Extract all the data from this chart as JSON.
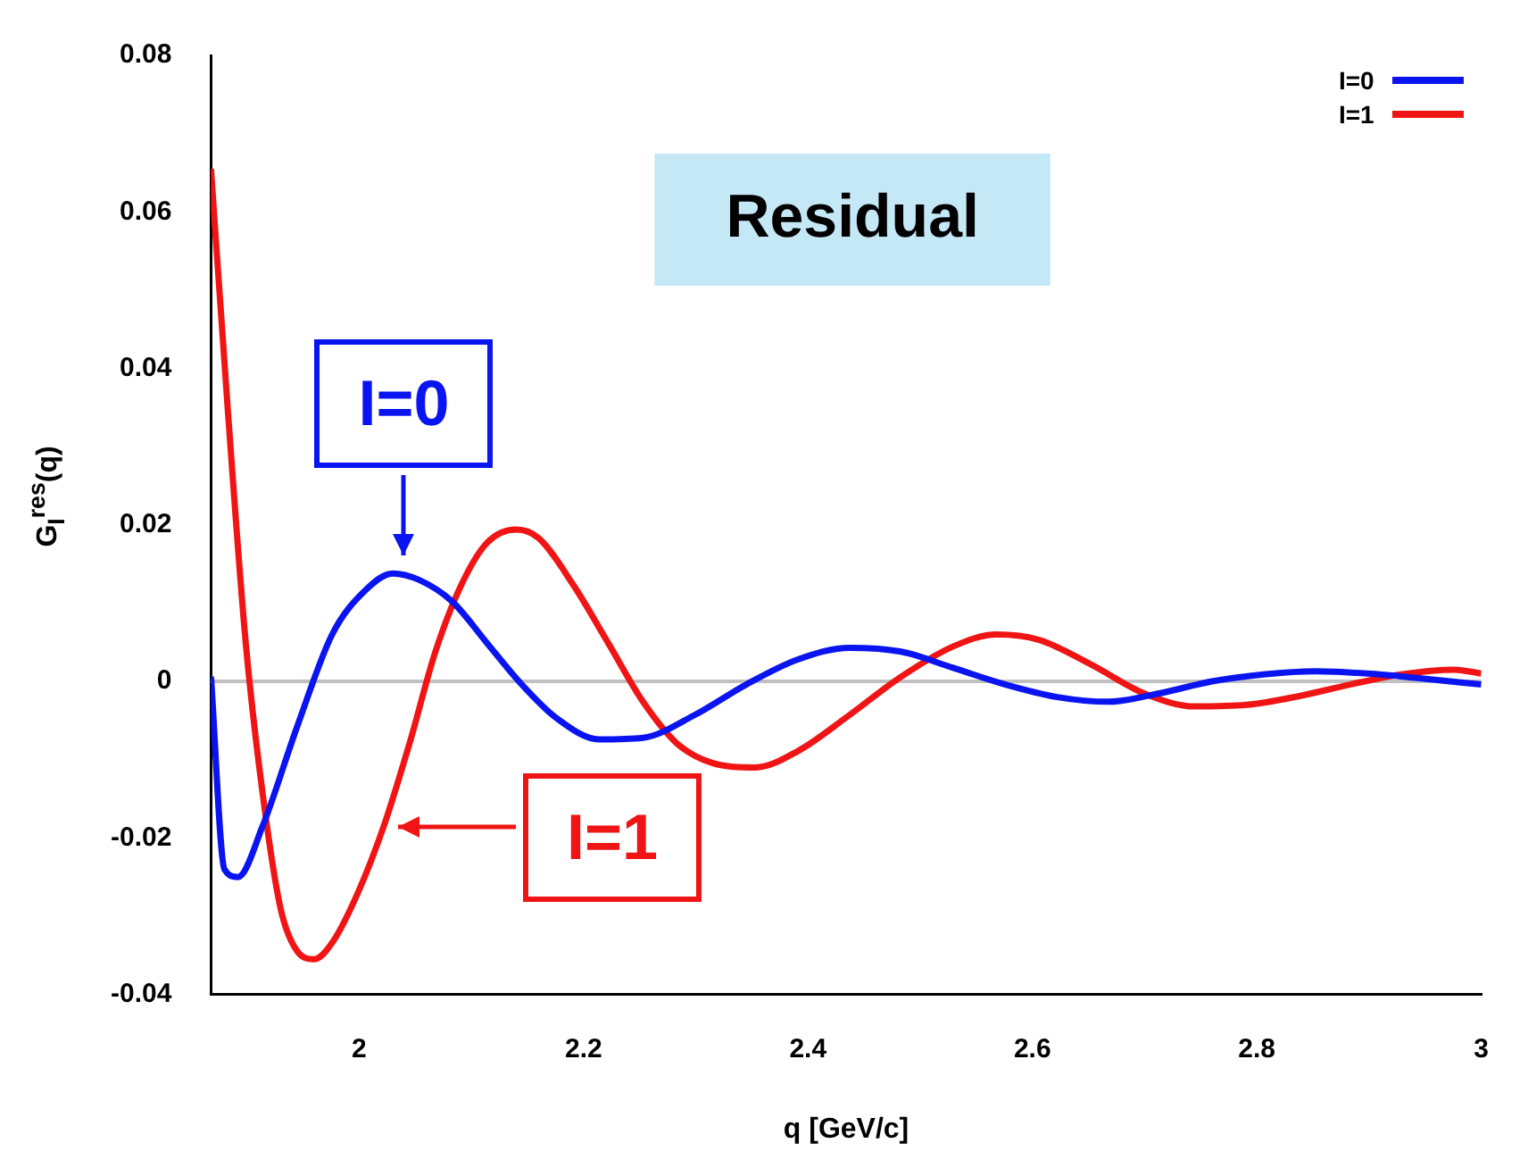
{
  "chart_data": {
    "type": "line",
    "xlabel": "q [GeV/c]",
    "ylabel": "G$_{I}$$^{res}$(q)",
    "xlim": [
      1.868,
      3
    ],
    "xticks": [
      2,
      2.2,
      2.4,
      2.6,
      2.8,
      3
    ],
    "ylim": [
      -0.04,
      0.08
    ],
    "yticks": [
      -0.04,
      -0.02,
      0,
      0.02,
      0.04,
      0.06,
      0.08
    ],
    "legend": "top right",
    "grid": false,
    "marker": "none",
    "line_style": "solid",
    "ref_lines": [
      {
        "axis": "y",
        "value": 0,
        "color": "#c0c0c0"
      }
    ],
    "annotations": [
      "Residual",
      {
        "text": "I=0",
        "x": 2.04,
        "y": 0.0138
      },
      {
        "text": "I=1",
        "x": 2.022,
        "y": -0.0185
      }
    ],
    "series": [
      {
        "name": "I=0",
        "color": "#0a14f0",
        "x": [
          1.868,
          1.88,
          1.892,
          1.914,
          1.945,
          1.976,
          2.006,
          2.03,
          2.053,
          2.083,
          2.114,
          2.145,
          2.176,
          2.214,
          2.253,
          2.299,
          2.345,
          2.391,
          2.437,
          2.483,
          2.53,
          2.576,
          2.622,
          2.668,
          2.714,
          2.76,
          2.806,
          2.852,
          2.899,
          2.945,
          3.0
        ],
        "values": [
          0.0006,
          -0.024,
          -0.025,
          -0.0185,
          -0.0057,
          0.006,
          0.0117,
          0.0138,
          0.013,
          0.0102,
          0.0049,
          -0.0004,
          -0.0047,
          -0.0074,
          -0.0072,
          -0.0043,
          -0.0004,
          0.0028,
          0.0043,
          0.0038,
          0.0017,
          -0.0004,
          -0.002,
          -0.0026,
          -0.0015,
          0,
          0.0009,
          0.0013,
          0.001,
          0.0004,
          -0.0004
        ]
      },
      {
        "name": "I=1",
        "color": "#f01414",
        "x": [
          1.868,
          1.883,
          1.899,
          1.914,
          1.93,
          1.945,
          1.96,
          1.976,
          1.999,
          2.022,
          2.045,
          2.068,
          2.091,
          2.114,
          2.14,
          2.16,
          2.191,
          2.222,
          2.253,
          2.283,
          2.314,
          2.353,
          2.391,
          2.437,
          2.483,
          2.53,
          2.568,
          2.606,
          2.653,
          2.699,
          2.745,
          2.791,
          2.837,
          2.883,
          2.929,
          2.976,
          3.0
        ],
        "values": [
          0.0655,
          0.0347,
          0.0049,
          -0.0143,
          -0.029,
          -0.0345,
          -0.0355,
          -0.0334,
          -0.027,
          -0.0185,
          -0.0079,
          0.0038,
          0.0123,
          0.0177,
          0.0194,
          0.0183,
          0.0123,
          0.0049,
          -0.0026,
          -0.0079,
          -0.0104,
          -0.011,
          -0.0089,
          -0.0043,
          0.0006,
          0.0045,
          0.006,
          0.0053,
          0.0021,
          -0.0015,
          -0.0032,
          -0.003,
          -0.0019,
          -0.0004,
          0.0009,
          0.0015,
          0.001
        ]
      }
    ]
  }
}
